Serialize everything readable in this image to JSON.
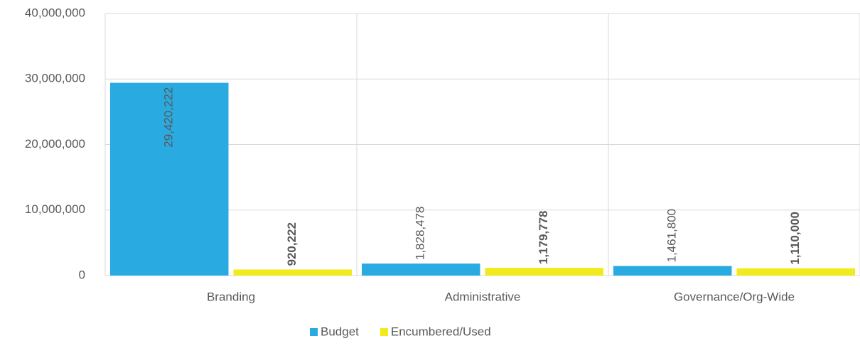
{
  "chart_data": {
    "type": "bar",
    "categories": [
      "Branding",
      "Administrative",
      "Governance/Org-Wide"
    ],
    "series": [
      {
        "name": "Budget",
        "color": "#29abe2",
        "values": [
          29420222,
          1828478,
          1461800
        ],
        "value_labels": [
          "29,420,222",
          "1,828,478",
          "1,461,800"
        ]
      },
      {
        "name": "Encumbered/Used",
        "color": "#f2ea1c",
        "values": [
          920222,
          1179778,
          1110000
        ],
        "value_labels": [
          "920,222",
          "1,179,778",
          "1,110,000"
        ]
      }
    ],
    "ylim": [
      0,
      40000000
    ],
    "yticks": [
      0,
      {
        "value": 10000000,
        "label": "10,000,000"
      },
      {
        "value": 20000000,
        "label": "20,000,000"
      },
      {
        "value": 30000000,
        "label": "30,000,000"
      },
      {
        "value": 40000000,
        "label": "40,000,000"
      }
    ],
    "grid": true,
    "legend": "bottom"
  }
}
